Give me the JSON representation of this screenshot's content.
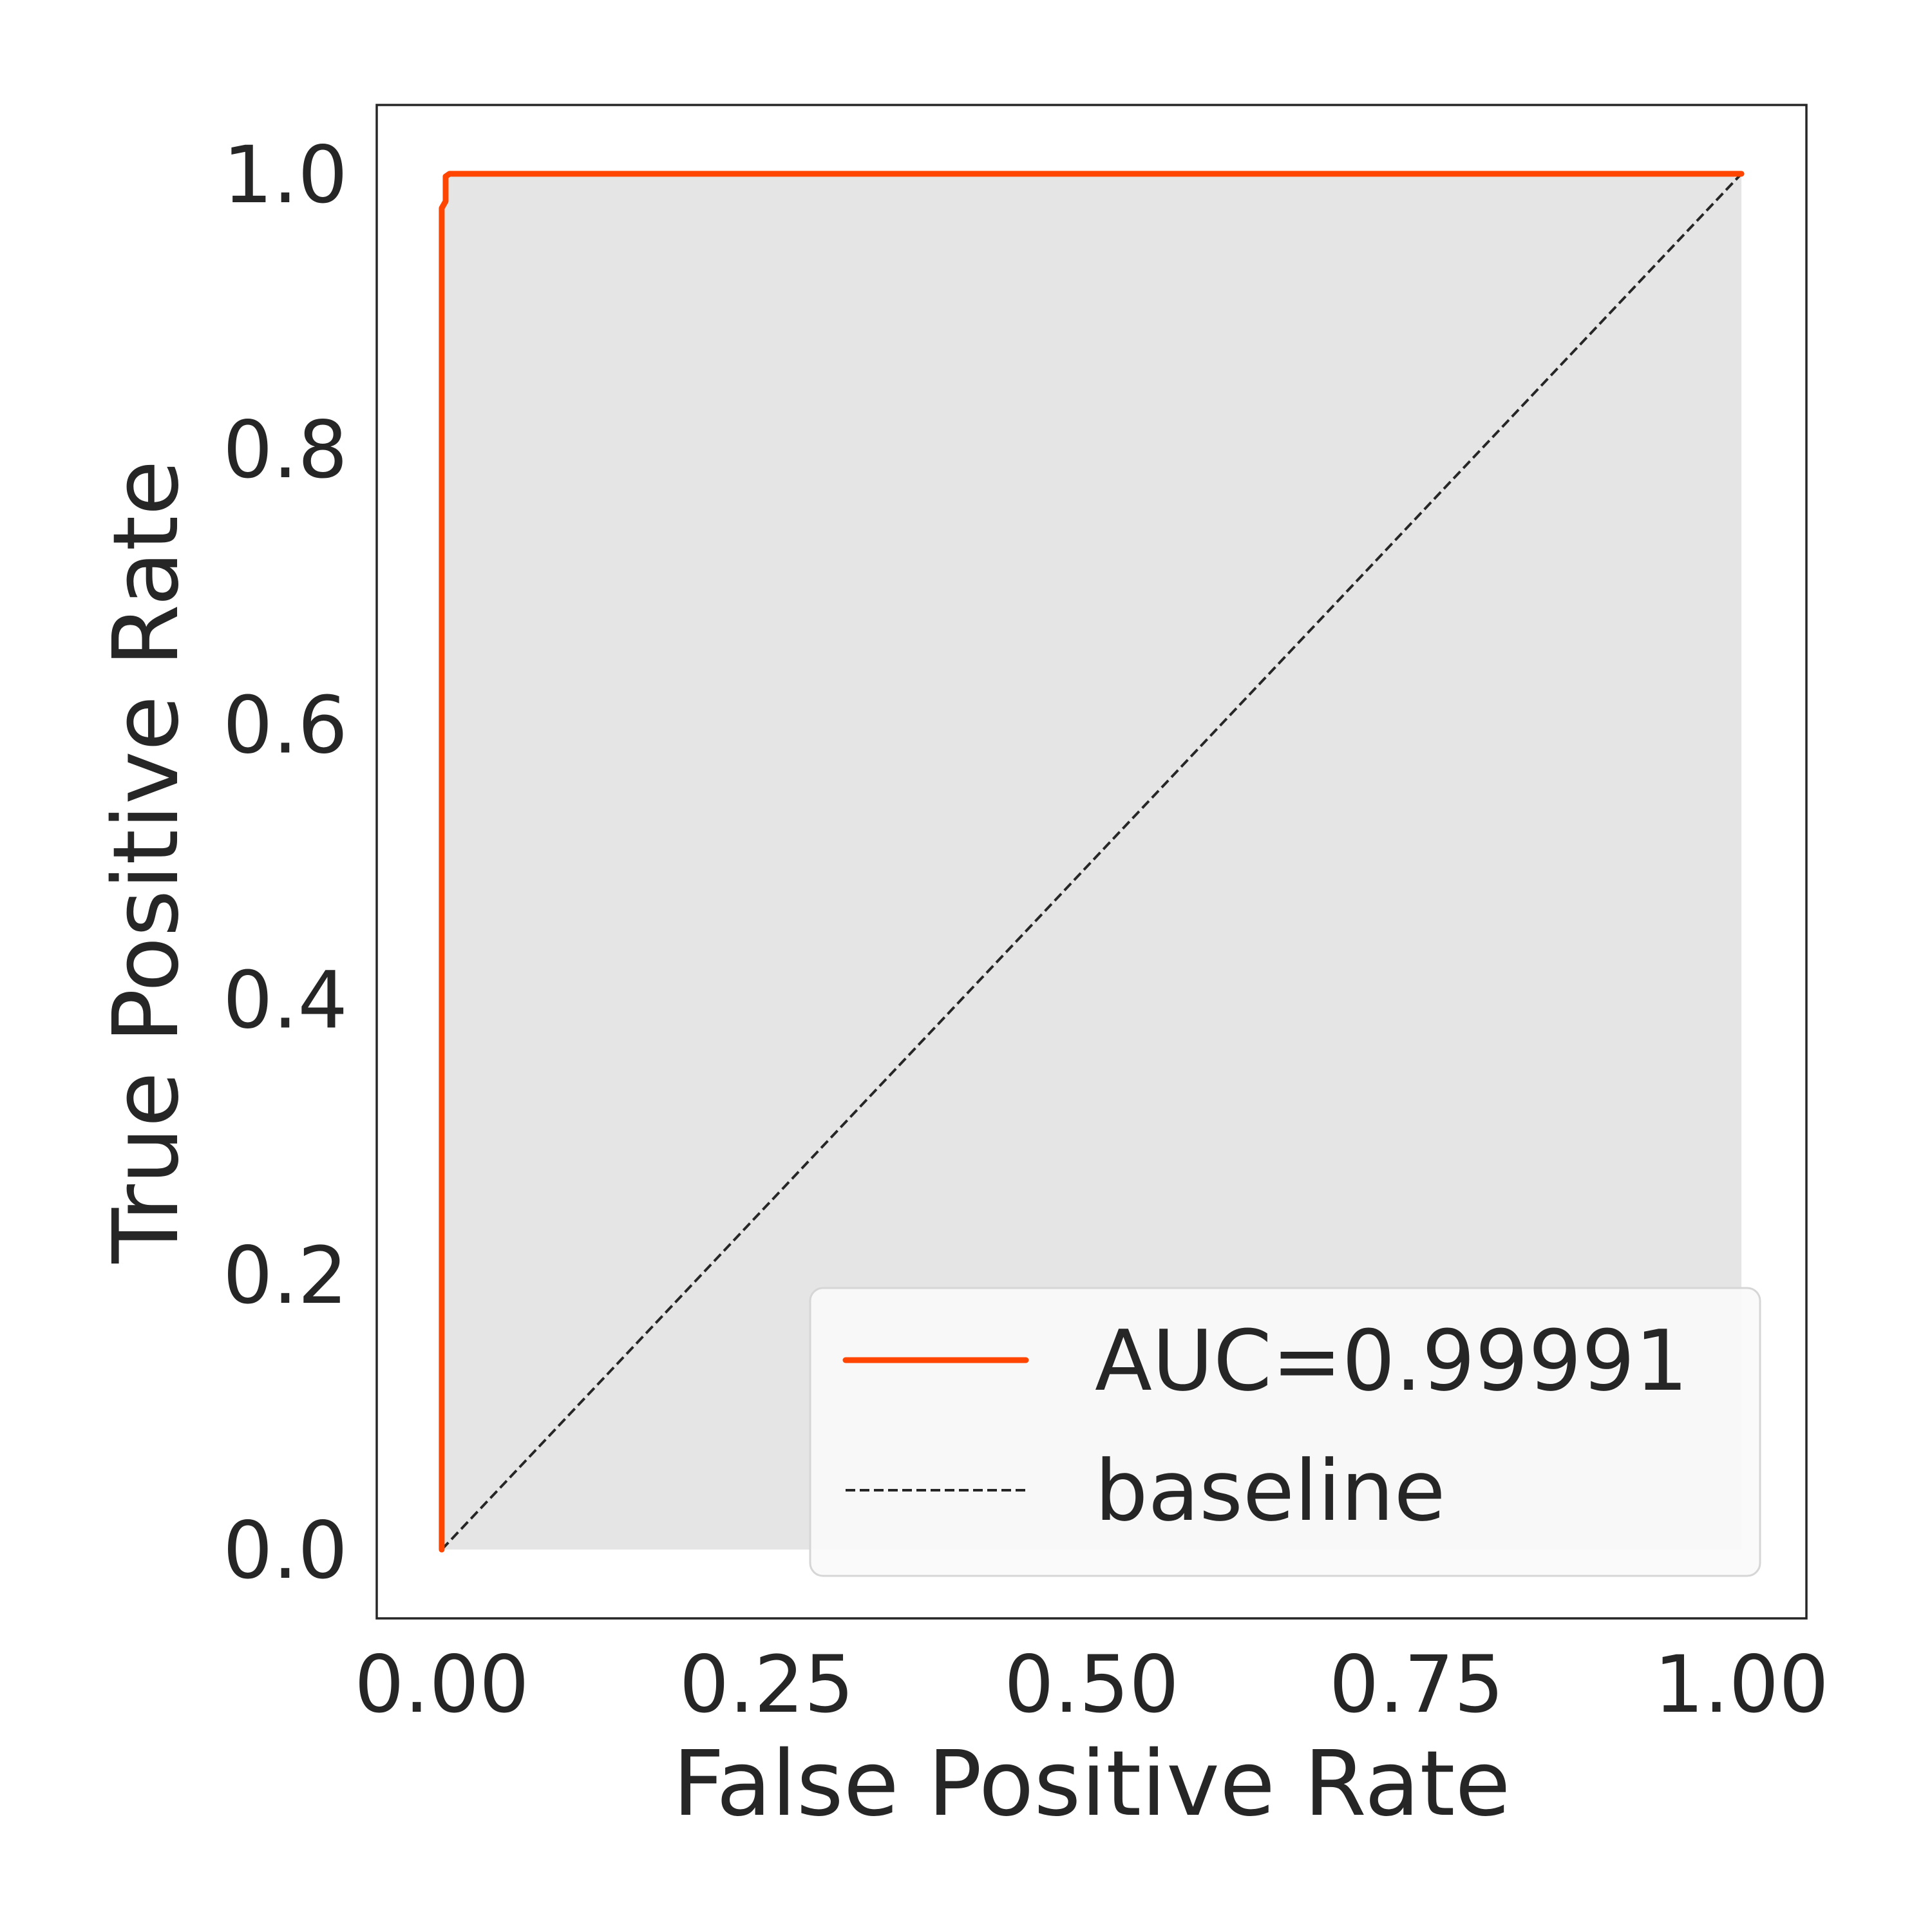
{
  "chart_data": {
    "type": "line",
    "title": "",
    "xlabel": "False Positive Rate",
    "ylabel": "True Positive Rate",
    "xlim": [
      -0.05,
      1.05
    ],
    "ylim": [
      -0.05,
      1.05
    ],
    "grid": false,
    "legend_placement": "lower-right",
    "x_ticks": [
      0.0,
      0.25,
      0.5,
      0.75,
      1.0
    ],
    "x_tick_labels": [
      "0.00",
      "0.25",
      "0.50",
      "0.75",
      "1.00"
    ],
    "y_ticks": [
      0.0,
      0.2,
      0.4,
      0.6,
      0.8,
      1.0
    ],
    "y_tick_labels": [
      "0.0",
      "0.2",
      "0.4",
      "0.6",
      "0.8",
      "1.0"
    ],
    "series": [
      {
        "name": "AUC=0.99991",
        "style": "solid",
        "color": "#ff4500",
        "shaded_area": true,
        "points": [
          [
            0.0,
            0.0
          ],
          [
            0.0,
            0.975
          ],
          [
            0.003,
            0.98
          ],
          [
            0.003,
            0.998
          ],
          [
            0.006,
            1.0
          ],
          [
            1.0,
            1.0
          ]
        ]
      },
      {
        "name": "baseline",
        "style": "dashed",
        "color": "#262626",
        "points": [
          [
            0.0,
            0.0
          ],
          [
            1.0,
            1.0
          ]
        ]
      }
    ]
  },
  "colors": {
    "roc_line": "#ff4500",
    "baseline": "#262626",
    "fill": "#e5e5e5",
    "axes": "#262626",
    "legend_bg": "#f9f9f9",
    "legend_border": "#d6d6d6"
  }
}
